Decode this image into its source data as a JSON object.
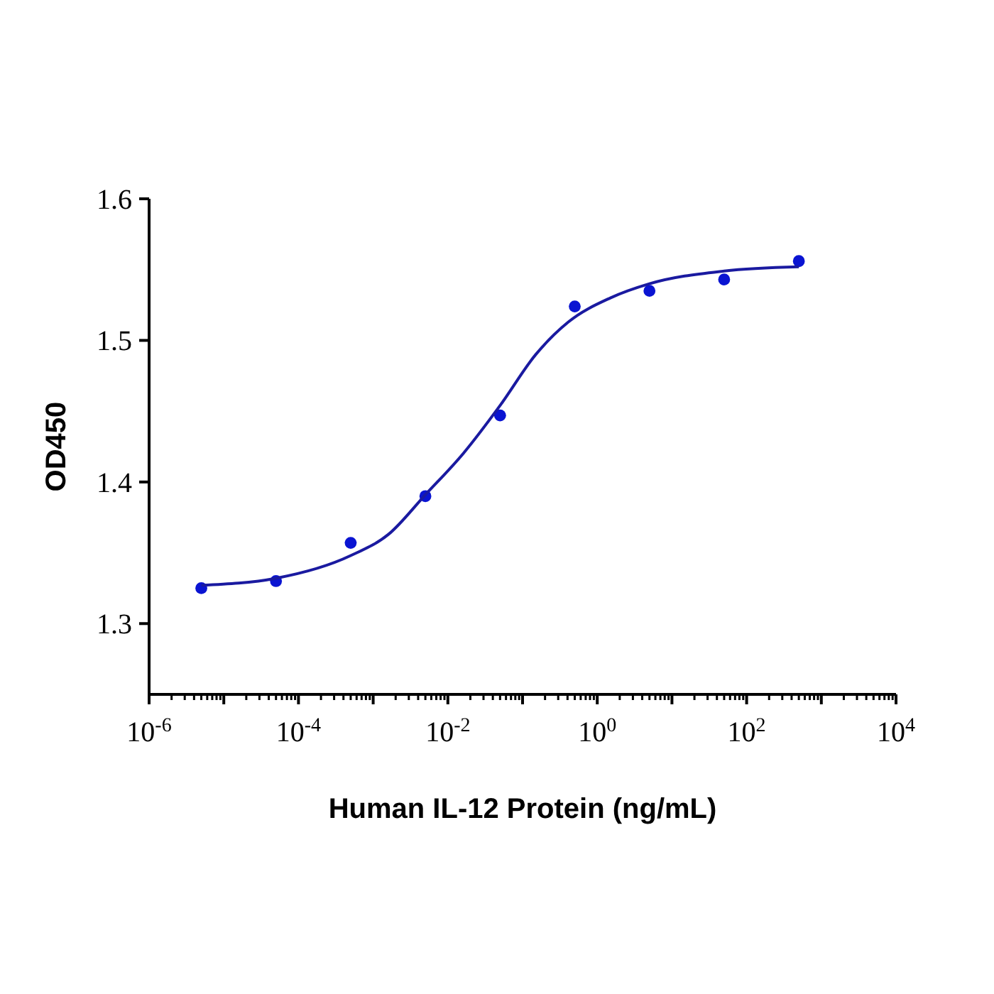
{
  "chart_data": {
    "type": "scatter",
    "xlabel": "Human IL-12 Protein (ng/mL)",
    "ylabel": "OD450",
    "log": "x",
    "xlim": [
      1e-06,
      10000
    ],
    "xticks": [
      {
        "value": 1e-06,
        "label": "10$^{-6}$"
      },
      {
        "value": 1e-05,
        "label": null
      },
      {
        "value": 0.0001,
        "label": "10$^{-4}$"
      },
      {
        "value": 0.001,
        "label": null
      },
      {
        "value": 0.01,
        "label": "10$^{-2}$"
      },
      {
        "value": 0.1,
        "label": null
      },
      {
        "value": 1,
        "label": "10$^{0}$"
      },
      {
        "value": 10,
        "label": null
      },
      {
        "value": 100,
        "label": "10$^{2}$"
      },
      {
        "value": 1000,
        "label": null
      },
      {
        "value": 10000,
        "label": "10$^{4}$"
      }
    ],
    "ylim": [
      1.25,
      1.6
    ],
    "yticks": [
      1.3,
      1.4,
      1.5,
      1.6
    ],
    "marker": "circle",
    "grid": false,
    "series": [
      {
        "color": "#0a14d2",
        "x": [
          5e-06,
          5e-05,
          0.0005,
          0.005,
          0.05,
          0.5,
          5,
          50,
          500
        ],
        "values": [
          1.325,
          1.33,
          1.357,
          1.39,
          1.447,
          1.524,
          1.535,
          1.543,
          1.556
        ]
      },
      {
        "type": "line",
        "color": "#1a1aa0",
        "marker": "none",
        "line_style": "solid",
        "x": [
          5e-06,
          5e-05,
          0.0005,
          0.0016,
          0.005,
          0.016,
          0.05,
          0.15,
          0.41,
          1.5,
          5,
          50,
          500
        ],
        "values": [
          1.327,
          1.332,
          1.348,
          1.363,
          1.391,
          1.42,
          1.454,
          1.49,
          1.513,
          1.53,
          1.54,
          1.549,
          1.552
        ]
      }
    ]
  }
}
